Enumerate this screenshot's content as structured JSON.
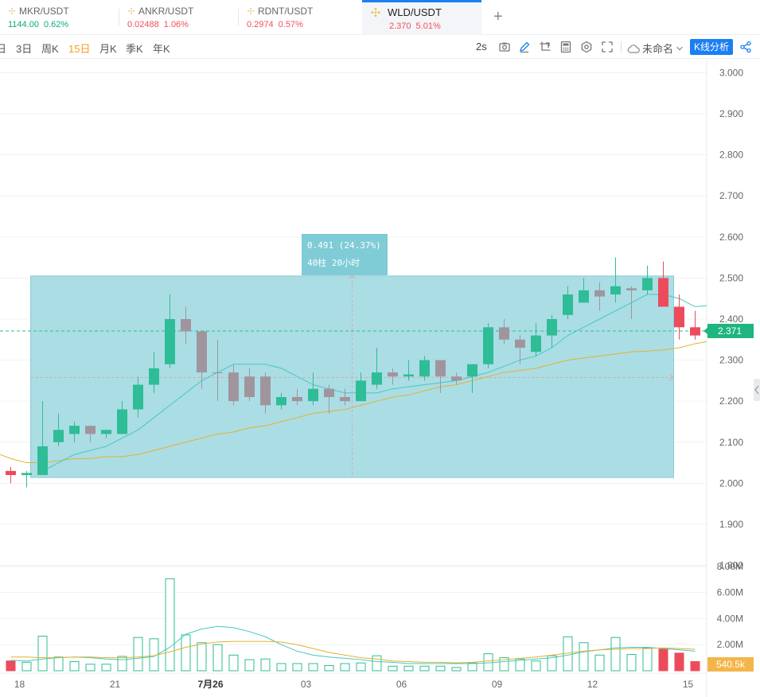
{
  "tabs": [
    {
      "pair": "MKR/USDT",
      "price": "1144.00",
      "change": "0.62%",
      "color": "#0fa980"
    },
    {
      "pair": "ANKR/USDT",
      "price": "0.02488",
      "change": "1.06%",
      "color": "#f34f5b"
    },
    {
      "pair": "RDNT/USDT",
      "price": "0.2974",
      "change": "0.57%",
      "color": "#f34f5b"
    },
    {
      "pair": "WLD/USDT",
      "price": "2.370",
      "change": "5.01%",
      "color": "#f34f5b",
      "active": true
    }
  ],
  "add_tab": "+",
  "toolbar": {
    "periods": [
      {
        "label": "日"
      },
      {
        "label": "3日"
      },
      {
        "label": "周K"
      },
      {
        "label": "15日",
        "active": true
      },
      {
        "label": "月K"
      },
      {
        "label": "季K"
      },
      {
        "label": "年K"
      }
    ],
    "refresh": "2s",
    "icons": [
      "camera-icon",
      "pen-icon",
      "crop-icon",
      "calculator-icon",
      "settings-icon",
      "fullscreen-icon"
    ],
    "layout_name": "未命名",
    "kline_button": "K线分析",
    "share_icon": "share-icon"
  },
  "colors": {
    "up": "#2ebd96",
    "down": "#ec4b5c",
    "gray": "#a0959d",
    "ma_short": "#46c9be",
    "ma_long": "#e3b230",
    "measure_fill": "#a6dbe4",
    "accent": "#1b7ff3"
  },
  "chart_data": {
    "type": "candlestick",
    "y_ticks": [
      "3.000",
      "2.900",
      "2.800",
      "2.700",
      "2.600",
      "2.500",
      "2.400",
      "2.300",
      "2.200",
      "2.100",
      "2.000",
      "1.900",
      "1.800"
    ],
    "price_range": [
      1.77,
      3.03
    ],
    "current_price": "2.371",
    "current_price_value": 2.371,
    "x_labels": [
      {
        "label": "18",
        "index": 0.5
      },
      {
        "label": "21",
        "index": 6.5
      },
      {
        "label": "7月26",
        "index": 12.5,
        "bold": true
      },
      {
        "label": "03",
        "index": 18.5
      },
      {
        "label": "06",
        "index": 24.5
      },
      {
        "label": "09",
        "index": 30.5
      },
      {
        "label": "12",
        "index": 36.5
      },
      {
        "label": "15",
        "index": 42.5
      }
    ],
    "candles": [
      {
        "o": 2.03,
        "h": 2.04,
        "l": 2.0,
        "c": 2.02,
        "v": 0.75,
        "d": "down"
      },
      {
        "o": 2.02,
        "h": 2.03,
        "l": 1.99,
        "c": 2.025,
        "v": 0.65,
        "d": "up"
      },
      {
        "o": 2.02,
        "h": 2.2,
        "l": 2.02,
        "c": 2.09,
        "v": 2.65,
        "d": "up"
      },
      {
        "o": 2.1,
        "h": 2.17,
        "l": 2.09,
        "c": 2.13,
        "v": 1.05,
        "d": "up"
      },
      {
        "o": 2.12,
        "h": 2.15,
        "l": 2.1,
        "c": 2.14,
        "v": 0.7,
        "d": "up"
      },
      {
        "o": 2.14,
        "h": 2.14,
        "l": 2.1,
        "c": 2.12,
        "v": 0.5,
        "d": "gray"
      },
      {
        "o": 2.12,
        "h": 2.13,
        "l": 2.11,
        "c": 2.13,
        "v": 0.5,
        "d": "up"
      },
      {
        "o": 2.12,
        "h": 2.2,
        "l": 2.12,
        "c": 2.18,
        "v": 1.1,
        "d": "up"
      },
      {
        "o": 2.18,
        "h": 2.26,
        "l": 2.16,
        "c": 2.24,
        "v": 2.55,
        "d": "up"
      },
      {
        "o": 2.24,
        "h": 2.32,
        "l": 2.22,
        "c": 2.28,
        "v": 2.45,
        "d": "up"
      },
      {
        "o": 2.29,
        "h": 2.46,
        "l": 2.28,
        "c": 2.4,
        "v": 7.05,
        "d": "up"
      },
      {
        "o": 2.4,
        "h": 2.43,
        "l": 2.34,
        "c": 2.37,
        "v": 2.75,
        "d": "gray"
      },
      {
        "o": 2.37,
        "h": 2.37,
        "l": 2.23,
        "c": 2.27,
        "v": 2.15,
        "d": "gray"
      },
      {
        "o": 2.27,
        "h": 2.35,
        "l": 2.2,
        "c": 2.27,
        "v": 2.0,
        "d": "gray"
      },
      {
        "o": 2.27,
        "h": 2.29,
        "l": 2.19,
        "c": 2.2,
        "v": 1.2,
        "d": "gray"
      },
      {
        "o": 2.26,
        "h": 2.28,
        "l": 2.2,
        "c": 2.21,
        "v": 0.85,
        "d": "gray"
      },
      {
        "o": 2.26,
        "h": 2.27,
        "l": 2.17,
        "c": 2.19,
        "v": 0.9,
        "d": "gray"
      },
      {
        "o": 2.19,
        "h": 2.22,
        "l": 2.18,
        "c": 2.21,
        "v": 0.55,
        "d": "up"
      },
      {
        "o": 2.21,
        "h": 2.23,
        "l": 2.19,
        "c": 2.2,
        "v": 0.55,
        "d": "gray"
      },
      {
        "o": 2.2,
        "h": 2.27,
        "l": 2.19,
        "c": 2.23,
        "v": 0.55,
        "d": "up"
      },
      {
        "o": 2.23,
        "h": 2.24,
        "l": 2.17,
        "c": 2.21,
        "v": 0.4,
        "d": "gray"
      },
      {
        "o": 2.21,
        "h": 2.23,
        "l": 2.19,
        "c": 2.2,
        "v": 0.55,
        "d": "gray"
      },
      {
        "o": 2.2,
        "h": 2.27,
        "l": 2.2,
        "c": 2.25,
        "v": 0.6,
        "d": "up"
      },
      {
        "o": 2.24,
        "h": 2.33,
        "l": 2.23,
        "c": 2.27,
        "v": 1.15,
        "d": "up"
      },
      {
        "o": 2.27,
        "h": 2.28,
        "l": 2.24,
        "c": 2.26,
        "v": 0.35,
        "d": "gray"
      },
      {
        "o": 2.26,
        "h": 2.3,
        "l": 2.25,
        "c": 2.265,
        "v": 0.35,
        "d": "up"
      },
      {
        "o": 2.26,
        "h": 2.31,
        "l": 2.25,
        "c": 2.3,
        "v": 0.35,
        "d": "up"
      },
      {
        "o": 2.3,
        "h": 2.3,
        "l": 2.22,
        "c": 2.26,
        "v": 0.35,
        "d": "gray"
      },
      {
        "o": 2.26,
        "h": 2.27,
        "l": 2.24,
        "c": 2.25,
        "v": 0.25,
        "d": "gray"
      },
      {
        "o": 2.26,
        "h": 2.29,
        "l": 2.22,
        "c": 2.29,
        "v": 0.6,
        "d": "up"
      },
      {
        "o": 2.29,
        "h": 2.39,
        "l": 2.28,
        "c": 2.38,
        "v": 1.3,
        "d": "up"
      },
      {
        "o": 2.38,
        "h": 2.4,
        "l": 2.34,
        "c": 2.35,
        "v": 1.0,
        "d": "gray"
      },
      {
        "o": 2.35,
        "h": 2.36,
        "l": 2.29,
        "c": 2.33,
        "v": 0.9,
        "d": "gray"
      },
      {
        "o": 2.32,
        "h": 2.39,
        "l": 2.31,
        "c": 2.36,
        "v": 0.75,
        "d": "up"
      },
      {
        "o": 2.36,
        "h": 2.41,
        "l": 2.33,
        "c": 2.4,
        "v": 1.15,
        "d": "up"
      },
      {
        "o": 2.41,
        "h": 2.48,
        "l": 2.4,
        "c": 2.46,
        "v": 2.6,
        "d": "up"
      },
      {
        "o": 2.44,
        "h": 2.5,
        "l": 2.44,
        "c": 2.47,
        "v": 2.15,
        "d": "up"
      },
      {
        "o": 2.47,
        "h": 2.49,
        "l": 2.42,
        "c": 2.455,
        "v": 1.2,
        "d": "gray"
      },
      {
        "o": 2.46,
        "h": 2.55,
        "l": 2.44,
        "c": 2.48,
        "v": 2.55,
        "d": "up"
      },
      {
        "o": 2.475,
        "h": 2.48,
        "l": 2.4,
        "c": 2.47,
        "v": 1.25,
        "d": "gray"
      },
      {
        "o": 2.47,
        "h": 2.53,
        "l": 2.46,
        "c": 2.5,
        "v": 1.75,
        "d": "up"
      },
      {
        "o": 2.5,
        "h": 2.54,
        "l": 2.43,
        "c": 2.43,
        "v": 1.65,
        "d": "down"
      },
      {
        "o": 2.43,
        "h": 2.46,
        "l": 2.35,
        "c": 2.38,
        "v": 1.35,
        "d": "down"
      },
      {
        "o": 2.38,
        "h": 2.42,
        "l": 2.35,
        "c": 2.36,
        "v": 0.7,
        "d": "down"
      }
    ],
    "ma_short": [
      null,
      null,
      2.03,
      2.05,
      2.07,
      2.08,
      2.09,
      2.11,
      2.13,
      2.16,
      2.19,
      2.22,
      2.25,
      2.27,
      2.29,
      2.29,
      2.29,
      2.28,
      2.26,
      2.24,
      2.23,
      2.22,
      2.22,
      2.22,
      2.23,
      2.235,
      2.24,
      2.245,
      2.25,
      2.26,
      2.27,
      2.285,
      2.3,
      2.31,
      2.33,
      2.36,
      2.38,
      2.4,
      2.42,
      2.44,
      2.46,
      2.46,
      2.45,
      2.43
    ],
    "ma_long": [
      2.06,
      2.05,
      2.05,
      2.055,
      2.06,
      2.06,
      2.065,
      2.065,
      2.07,
      2.08,
      2.09,
      2.1,
      2.11,
      2.12,
      2.125,
      2.135,
      2.14,
      2.15,
      2.16,
      2.17,
      2.175,
      2.18,
      2.19,
      2.2,
      2.21,
      2.215,
      2.225,
      2.235,
      2.24,
      2.25,
      2.26,
      2.27,
      2.275,
      2.28,
      2.29,
      2.3,
      2.305,
      2.31,
      2.315,
      2.32,
      2.322,
      2.325,
      2.33,
      2.34
    ],
    "vol_ticks": [
      "8.00M",
      "6.00M",
      "4.00M",
      "2.00M"
    ],
    "vol_range": [
      0,
      8.6
    ],
    "vol_current": "540.5k",
    "vol_ma_short": [
      0.8,
      0.75,
      0.9,
      1.0,
      1.05,
      1.0,
      0.9,
      0.85,
      0.95,
      1.1,
      1.8,
      2.8,
      3.2,
      3.4,
      3.3,
      3.0,
      2.6,
      2.0,
      1.5,
      1.2,
      1.05,
      0.95,
      0.85,
      0.7,
      0.65,
      0.55,
      0.55,
      0.55,
      0.55,
      0.55,
      0.6,
      0.7,
      0.8,
      0.9,
      1.0,
      1.2,
      1.45,
      1.6,
      1.75,
      1.8,
      1.8,
      1.7,
      1.6,
      1.5
    ],
    "vol_ma_long": [
      1.05,
      1.05,
      1.0,
      1.0,
      1.05,
      1.05,
      1.0,
      1.0,
      1.05,
      1.15,
      1.45,
      1.8,
      2.05,
      2.2,
      2.25,
      2.25,
      2.25,
      2.2,
      2.0,
      1.7,
      1.4,
      1.2,
      1.0,
      0.9,
      0.75,
      0.7,
      0.65,
      0.65,
      0.6,
      0.65,
      0.75,
      0.85,
      0.95,
      1.05,
      1.2,
      1.35,
      1.5,
      1.6,
      1.65,
      1.7,
      1.7,
      1.75,
      1.7,
      1.65
    ],
    "measure": {
      "label": "0.491 (24.37%)",
      "sub": "40柱 20小时",
      "from_index": 1,
      "to_index": 41,
      "low": 2.014,
      "high": 2.505
    }
  }
}
